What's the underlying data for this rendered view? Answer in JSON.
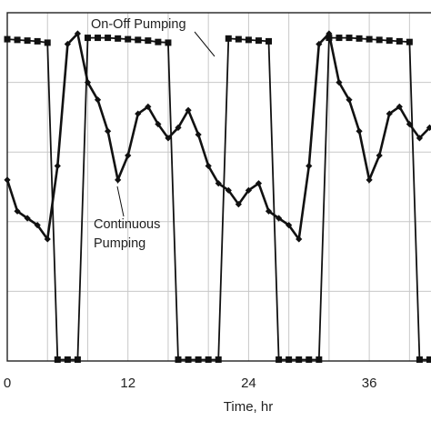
{
  "chart_data": {
    "type": "line",
    "title": "",
    "xlabel": "Time, hr",
    "ylabel": "",
    "xlim": [
      0,
      42.5
    ],
    "ylim": [
      0,
      5
    ],
    "x_ticks": [
      0,
      12,
      24,
      36
    ],
    "y_ticks": [],
    "grid": true,
    "legend": "none",
    "series": [
      {
        "name": "On-Off Pumping",
        "marker": "square",
        "color": "#111111",
        "x": [
          0,
          1,
          2,
          3,
          4,
          5,
          6,
          7,
          8,
          9,
          10,
          11,
          12,
          13,
          14,
          15,
          16,
          17,
          18,
          19,
          20,
          21,
          22,
          23,
          24,
          25,
          26,
          27,
          28,
          29,
          30,
          31,
          32,
          33,
          34,
          35,
          36,
          37,
          38,
          39,
          40,
          41,
          42
        ],
        "y": [
          4.62,
          4.61,
          4.6,
          4.59,
          4.57,
          0.02,
          0.02,
          0.02,
          4.64,
          4.64,
          4.64,
          4.63,
          4.62,
          4.61,
          4.6,
          4.58,
          4.57,
          0.02,
          0.02,
          0.02,
          0.02,
          0.02,
          4.63,
          4.62,
          4.61,
          4.6,
          4.59,
          0.02,
          0.02,
          0.02,
          0.02,
          0.02,
          4.64,
          4.64,
          4.64,
          4.63,
          4.62,
          4.61,
          4.6,
          4.59,
          4.58,
          0.02,
          0.02
        ]
      },
      {
        "name": "Continuous Pumping",
        "marker": "diamond",
        "color": "#111111",
        "x": [
          0,
          1,
          2,
          3,
          4,
          5,
          6,
          7,
          8,
          9,
          10,
          11,
          12,
          13,
          14,
          15,
          16,
          17,
          18,
          19,
          20,
          21,
          22,
          23,
          24,
          25,
          26,
          27,
          28,
          29,
          30,
          31,
          32,
          33,
          34,
          35,
          36,
          37,
          38,
          39,
          40,
          41,
          42
        ],
        "y": [
          2.6,
          2.15,
          2.05,
          1.95,
          1.75,
          2.8,
          4.55,
          4.7,
          4.0,
          3.75,
          3.3,
          2.6,
          2.95,
          3.55,
          3.65,
          3.4,
          3.2,
          3.35,
          3.6,
          3.25,
          2.8,
          2.55,
          2.45,
          2.25,
          2.45,
          2.55,
          2.15,
          2.05,
          1.95,
          1.75,
          2.8,
          4.55,
          4.7,
          4.0,
          3.75,
          3.3,
          2.6,
          2.95,
          3.55,
          3.65,
          3.4,
          3.2,
          3.35
        ]
      }
    ],
    "annotations": [
      {
        "text": "On-Off Pumping",
        "points_to_series": 0
      },
      {
        "text": "Continuous",
        "points_to_series": 1
      },
      {
        "text": "Pumping",
        "points_to_series": 1
      }
    ]
  }
}
